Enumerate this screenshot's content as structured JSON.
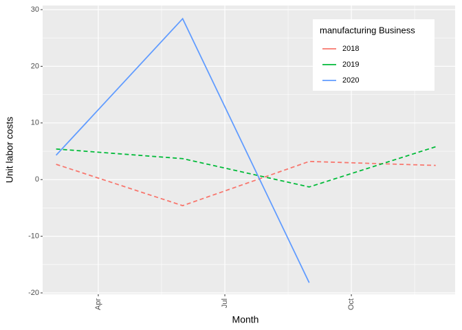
{
  "chart_data": {
    "type": "line",
    "xlabel": "Month",
    "ylabel": "Unit labor costs",
    "legend_title": "manufacturing Business",
    "x": [
      3,
      6,
      9,
      12
    ],
    "series": [
      {
        "name": "2018",
        "color": "#f8766d",
        "linestyle": "dashed",
        "values": [
          2.7,
          -4.6,
          3.2,
          2.5
        ]
      },
      {
        "name": "2019",
        "color": "#00ba38",
        "linestyle": "dashed",
        "values": [
          5.4,
          3.7,
          -1.3,
          5.8
        ]
      },
      {
        "name": "2020",
        "color": "#619cff",
        "linestyle": "solid",
        "values": [
          4.3,
          28.4,
          -18.2,
          null
        ]
      }
    ],
    "xlim": [
      2.68,
      12.46
    ],
    "xticks": [
      {
        "value": 4,
        "label": "Apr"
      },
      {
        "value": 7,
        "label": "Jul"
      },
      {
        "value": 10,
        "label": "Oct"
      }
    ],
    "ylim": [
      -20.24,
      30.73
    ],
    "yticks": [
      -20,
      -10,
      0,
      10,
      20,
      30
    ],
    "grid": true,
    "legend_position": "top-right"
  }
}
